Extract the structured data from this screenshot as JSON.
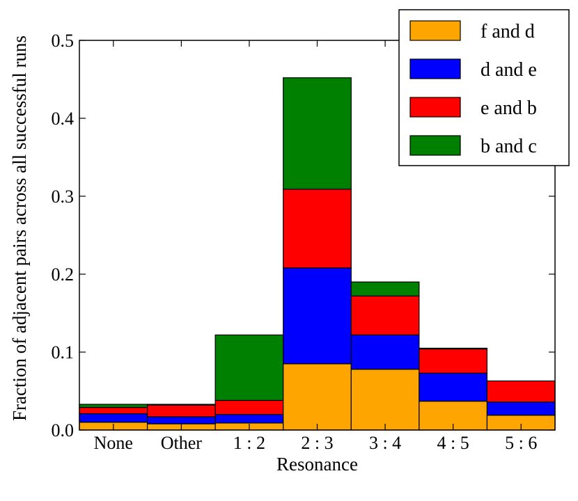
{
  "chart_data": {
    "type": "bar",
    "stacked": true,
    "title": "",
    "xlabel": "Resonance",
    "ylabel": "Fraction of adjacent pairs across all successful runs",
    "ylim": [
      0.0,
      0.5
    ],
    "yticks": [
      "0.0",
      "0.1",
      "0.2",
      "0.3",
      "0.4",
      "0.5"
    ],
    "categories": [
      "None",
      "Other",
      "1 : 2",
      "2 : 3",
      "3 : 4",
      "4 : 5",
      "5 : 6"
    ],
    "series": [
      {
        "name": "f and d",
        "color": "#ffa500",
        "values": [
          0.01,
          0.008,
          0.009,
          0.085,
          0.078,
          0.037,
          0.019
        ]
      },
      {
        "name": "d and e",
        "color": "#0000ff",
        "values": [
          0.011,
          0.009,
          0.011,
          0.123,
          0.044,
          0.036,
          0.017
        ]
      },
      {
        "name": "e and b",
        "color": "#ff0000",
        "values": [
          0.008,
          0.015,
          0.018,
          0.101,
          0.05,
          0.031,
          0.027
        ]
      },
      {
        "name": "b and c",
        "color": "#008000",
        "values": [
          0.004,
          0.001,
          0.084,
          0.143,
          0.018,
          0.001,
          0.0
        ]
      }
    ],
    "legend_position": "top-right"
  }
}
